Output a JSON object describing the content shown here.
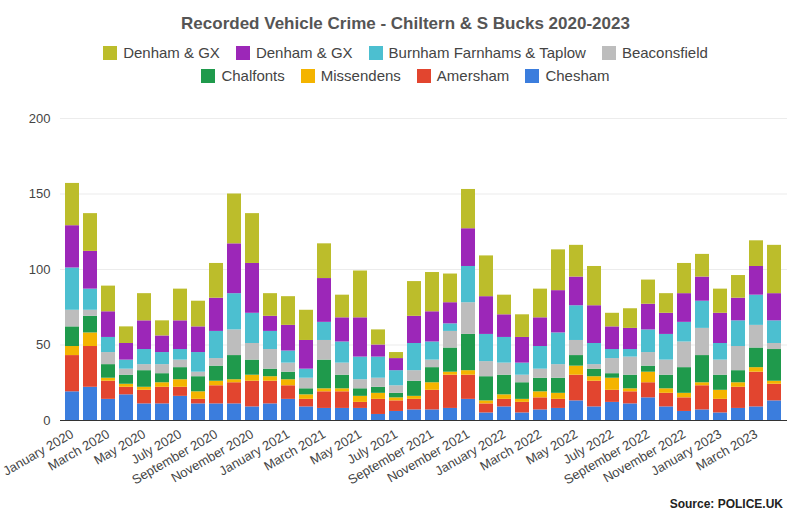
{
  "chart_data": {
    "type": "bar",
    "title": "Recorded Vehicle Crime - Chiltern & S Bucks 2020-2023",
    "caption": "Source:  POLICE.UK",
    "stacked": true,
    "grid": true,
    "legend": "top",
    "categories": [
      "January 2020",
      null,
      "March 2020",
      null,
      "May 2020",
      null,
      "July 2020",
      null,
      "September 2020",
      null,
      "November 2020",
      null,
      "January 2021",
      null,
      "March 2021",
      null,
      "May 2021",
      null,
      "July 2021",
      null,
      "September 2021",
      null,
      "November 2021",
      null,
      "January 2022",
      null,
      "March 2022",
      null,
      "May 2022",
      null,
      "July 2022",
      null,
      "September 2022",
      null,
      "November 2022",
      null,
      "January 2023",
      null,
      "March 2023",
      null
    ],
    "ylim": [
      0,
      200
    ],
    "yticks": [
      0,
      50,
      100,
      150,
      200
    ],
    "series": [
      {
        "name": "Denham & GX",
        "color": "#bcbd2b",
        "values": [
          28,
          25,
          17,
          11,
          18,
          10,
          21,
          17,
          23,
          33,
          33,
          15,
          19,
          20,
          23,
          15,
          31,
          10,
          4,
          23,
          26,
          19,
          26,
          27,
          13,
          15,
          19,
          27,
          21,
          26,
          9,
          13,
          16,
          13,
          20,
          15,
          16,
          15,
          17,
          32
        ]
      },
      {
        "name": "Denham & GX",
        "color": "#9c27b8",
        "values": [
          28,
          25,
          17,
          11,
          19,
          11,
          19,
          17,
          22,
          33,
          33,
          10,
          17,
          19,
          29,
          16,
          26,
          8,
          8,
          18,
          20,
          14,
          25,
          25,
          15,
          17,
          19,
          28,
          19,
          25,
          15,
          14,
          17,
          14,
          19,
          16,
          20,
          15,
          19,
          18
        ]
      },
      {
        "name": "Burnham Farnhams & Taplow",
        "color": "#4cbfd0",
        "values": [
          28,
          14,
          10,
          6,
          10,
          8,
          7,
          13,
          18,
          24,
          20,
          12,
          8,
          6,
          12,
          14,
          15,
          14,
          10,
          18,
          12,
          5,
          24,
          18,
          17,
          8,
          15,
          21,
          23,
          14,
          6,
          5,
          15,
          17,
          13,
          18,
          11,
          17,
          20,
          15
        ]
      },
      {
        "name": "Beaconsfield",
        "color": "#bdbdbd",
        "values": [
          11,
          4,
          8,
          4,
          4,
          6,
          5,
          3,
          5,
          17,
          11,
          13,
          6,
          7,
          13,
          8,
          6,
          6,
          5,
          7,
          5,
          11,
          21,
          10,
          8,
          5,
          6,
          9,
          10,
          3,
          10,
          12,
          9,
          10,
          17,
          18,
          10,
          16,
          15,
          4
        ]
      },
      {
        "name": "Chalfonts",
        "color": "#1f9a4c",
        "values": [
          13,
          11,
          9,
          6,
          11,
          6,
          8,
          10,
          10,
          16,
          10,
          5,
          5,
          4,
          19,
          9,
          5,
          4,
          3,
          10,
          10,
          16,
          24,
          16,
          13,
          11,
          9,
          10,
          7,
          5,
          3,
          9,
          4,
          9,
          17,
          18,
          10,
          8,
          13,
          21
        ]
      },
      {
        "name": "Missendens",
        "color": "#f4b400",
        "values": [
          6,
          9,
          2,
          2,
          2,
          3,
          5,
          5,
          3,
          2,
          4,
          3,
          4,
          3,
          2,
          2,
          4,
          4,
          2,
          2,
          5,
          2,
          3,
          2,
          3,
          2,
          4,
          4,
          6,
          3,
          8,
          2,
          7,
          3,
          3,
          2,
          6,
          3,
          3,
          2
        ]
      },
      {
        "name": "Amersham",
        "color": "#e2452f",
        "values": [
          24,
          27,
          12,
          5,
          9,
          11,
          6,
          3,
          12,
          14,
          17,
          15,
          9,
          5,
          11,
          11,
          4,
          10,
          7,
          7,
          13,
          22,
          16,
          6,
          5,
          7,
          8,
          6,
          17,
          17,
          8,
          8,
          10,
          9,
          9,
          16,
          9,
          14,
          23,
          11
        ]
      },
      {
        "name": "Chesham",
        "color": "#3b7ddd",
        "values": [
          19,
          22,
          14,
          17,
          11,
          11,
          16,
          11,
          11,
          11,
          9,
          11,
          14,
          9,
          8,
          8,
          8,
          4,
          6,
          7,
          7,
          8,
          14,
          5,
          9,
          5,
          7,
          8,
          13,
          9,
          12,
          11,
          15,
          9,
          6,
          7,
          5,
          8,
          9,
          13
        ]
      }
    ]
  }
}
